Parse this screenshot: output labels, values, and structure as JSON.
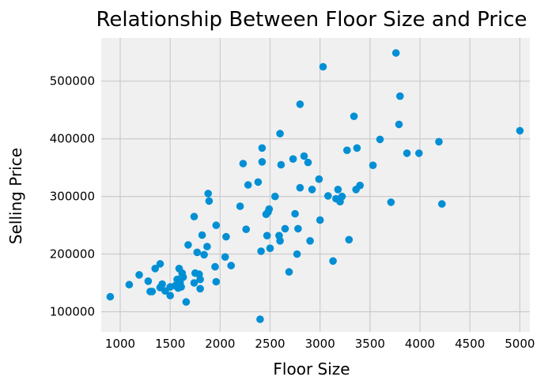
{
  "chart_data": {
    "type": "scatter",
    "title": "Relationship Between Floor Size and Price",
    "xlabel": "Floor Size",
    "ylabel": "Selling Price",
    "xlim": [
      810,
      5100
    ],
    "ylim": [
      65000,
      575000
    ],
    "x_ticks": [
      1000,
      1500,
      2000,
      2500,
      3000,
      3500,
      4000,
      4500,
      5000
    ],
    "x_tick_labels": [
      "1000",
      "1500",
      "2000",
      "2500",
      "3000",
      "3500",
      "4000",
      "4500",
      "5000"
    ],
    "y_ticks": [
      100000,
      200000,
      300000,
      400000,
      500000
    ],
    "y_tick_labels": [
      "100000",
      "200000",
      "300000",
      "400000",
      "500000"
    ],
    "grid": true,
    "legend": "none",
    "color": "#008fd5",
    "points": [
      [
        900,
        126000
      ],
      [
        1090,
        147000
      ],
      [
        1190,
        164000
      ],
      [
        1280,
        153000
      ],
      [
        1300,
        135000
      ],
      [
        1320,
        135000
      ],
      [
        1350,
        175000
      ],
      [
        1400,
        183000
      ],
      [
        1400,
        142000
      ],
      [
        1420,
        148000
      ],
      [
        1450,
        136000
      ],
      [
        1500,
        143000
      ],
      [
        1500,
        128000
      ],
      [
        1550,
        145000
      ],
      [
        1570,
        156000
      ],
      [
        1580,
        141000
      ],
      [
        1590,
        175000
      ],
      [
        1600,
        150000
      ],
      [
        1610,
        143000
      ],
      [
        1610,
        158000
      ],
      [
        1620,
        167000
      ],
      [
        1630,
        160000
      ],
      [
        1660,
        117000
      ],
      [
        1680,
        216000
      ],
      [
        1740,
        150000
      ],
      [
        1740,
        265000
      ],
      [
        1750,
        167000
      ],
      [
        1770,
        203000
      ],
      [
        1790,
        165000
      ],
      [
        1800,
        156000
      ],
      [
        1800,
        140000
      ],
      [
        1820,
        233000
      ],
      [
        1840,
        199000
      ],
      [
        1870,
        213000
      ],
      [
        1880,
        305000
      ],
      [
        1890,
        292000
      ],
      [
        1950,
        178000
      ],
      [
        1960,
        250000
      ],
      [
        1960,
        152000
      ],
      [
        2050,
        195000
      ],
      [
        2060,
        230000
      ],
      [
        2110,
        180000
      ],
      [
        2200,
        283000
      ],
      [
        2230,
        357000
      ],
      [
        2260,
        243000
      ],
      [
        2280,
        320000
      ],
      [
        2380,
        325000
      ],
      [
        2400,
        87000
      ],
      [
        2410,
        205000
      ],
      [
        2420,
        384000
      ],
      [
        2420,
        360000
      ],
      [
        2460,
        269000
      ],
      [
        2470,
        232000
      ],
      [
        2480,
        273000
      ],
      [
        2490,
        278000
      ],
      [
        2500,
        210000
      ],
      [
        2550,
        300000
      ],
      [
        2590,
        232000
      ],
      [
        2600,
        223000
      ],
      [
        2600,
        409000
      ],
      [
        2610,
        355000
      ],
      [
        2650,
        244000
      ],
      [
        2690,
        169000
      ],
      [
        2730,
        365000
      ],
      [
        2750,
        270000
      ],
      [
        2770,
        200000
      ],
      [
        2780,
        244000
      ],
      [
        2800,
        460000
      ],
      [
        2800,
        315000
      ],
      [
        2840,
        370000
      ],
      [
        2880,
        359000
      ],
      [
        2900,
        223000
      ],
      [
        2920,
        312000
      ],
      [
        2990,
        330000
      ],
      [
        3000,
        259000
      ],
      [
        3030,
        525000
      ],
      [
        3080,
        301000
      ],
      [
        3130,
        188000
      ],
      [
        3160,
        296000
      ],
      [
        3180,
        312000
      ],
      [
        3200,
        291000
      ],
      [
        3220,
        300000
      ],
      [
        3270,
        380000
      ],
      [
        3290,
        225000
      ],
      [
        3340,
        439000
      ],
      [
        3360,
        312000
      ],
      [
        3370,
        384000
      ],
      [
        3400,
        319000
      ],
      [
        3530,
        354000
      ],
      [
        3600,
        399000
      ],
      [
        3710,
        290000
      ],
      [
        3760,
        549000
      ],
      [
        3790,
        425000
      ],
      [
        3800,
        474000
      ],
      [
        3870,
        375000
      ],
      [
        3990,
        375000
      ],
      [
        4190,
        395000
      ],
      [
        4220,
        287000
      ],
      [
        5000,
        414000
      ]
    ]
  }
}
